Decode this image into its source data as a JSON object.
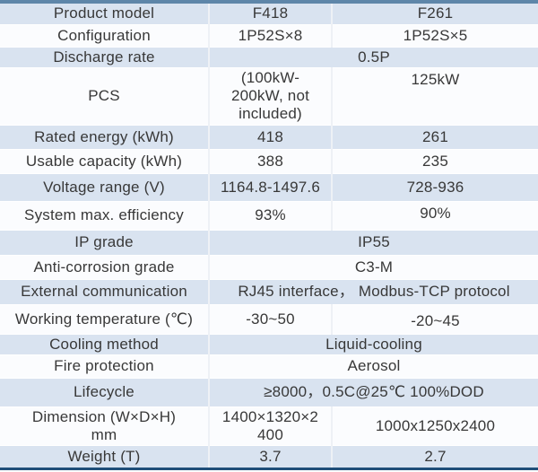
{
  "colors": {
    "row_alt_blue": "#d9e3f0",
    "row_alt_white": "#fbfcfe",
    "top_border": "#5e86a9",
    "bottom_border": "#1f4e79",
    "text": "#383838",
    "divider": "#eef1f6"
  },
  "chart_data": {
    "type": "table",
    "columns": [
      "Product model",
      "F418",
      "F261"
    ],
    "rows": [
      {
        "label": "Product model",
        "cells": [
          {
            "text": "F418"
          },
          {
            "text": "F261"
          }
        ]
      },
      {
        "label": "Configuration",
        "cells": [
          {
            "text": "1P52S×8"
          },
          {
            "text": "1P52S×5"
          }
        ]
      },
      {
        "label": "Discharge rate",
        "cells": [
          {
            "text": "0.5P",
            "span": 2
          }
        ]
      },
      {
        "label": "PCS",
        "cells": [
          {
            "text": "(100kW-\n200kW, not\nincluded)"
          },
          {
            "text": "125kW",
            "valign": "top"
          }
        ]
      },
      {
        "label": "Rated energy (kWh)",
        "cells": [
          {
            "text": "418"
          },
          {
            "text": "261",
            "valign": "top"
          }
        ]
      },
      {
        "label": "Usable capacity (kWh)",
        "cells": [
          {
            "text": "388"
          },
          {
            "text": "235",
            "valign": "top"
          }
        ]
      },
      {
        "label": "Voltage range (V)",
        "cells": [
          {
            "text": "1164.8-1497.6"
          },
          {
            "text": "728-936"
          }
        ]
      },
      {
        "label": "System max. efficiency",
        "cells": [
          {
            "text": "93%"
          },
          {
            "text": "90%",
            "valign": "top"
          }
        ]
      },
      {
        "label": "IP grade",
        "cells": [
          {
            "text": "IP55",
            "span": 2
          }
        ]
      },
      {
        "label": "Anti-corrosion grade",
        "cells": [
          {
            "text": "C3-M",
            "span": 2
          }
        ]
      },
      {
        "label": "External communication",
        "cells": [
          {
            "text": "RJ45 interface， Modbus-TCP protocol",
            "span": 2
          }
        ]
      },
      {
        "label": "Working temperature (℃)",
        "cells": [
          {
            "text": "-30~50"
          },
          {
            "text": "-20~45",
            "valign": "bottom"
          }
        ]
      },
      {
        "label": "Cooling method",
        "cells": [
          {
            "text": "Liquid-cooling",
            "span": 2
          }
        ]
      },
      {
        "label": "Fire protection",
        "cells": [
          {
            "text": "Aerosol",
            "span": 2
          }
        ]
      },
      {
        "label": "Lifecycle",
        "cells": [
          {
            "text": "≥8000，0.5C@25℃ 100%DOD",
            "span": 2
          }
        ]
      },
      {
        "label": "Dimension (W×D×H)\nmm",
        "cells": [
          {
            "text": "1400×1320×2\n400"
          },
          {
            "text": "1000x1250x2400"
          }
        ]
      },
      {
        "label": "Weight (T)",
        "cells": [
          {
            "text": "3.7"
          },
          {
            "text": "2.7"
          }
        ]
      }
    ]
  }
}
